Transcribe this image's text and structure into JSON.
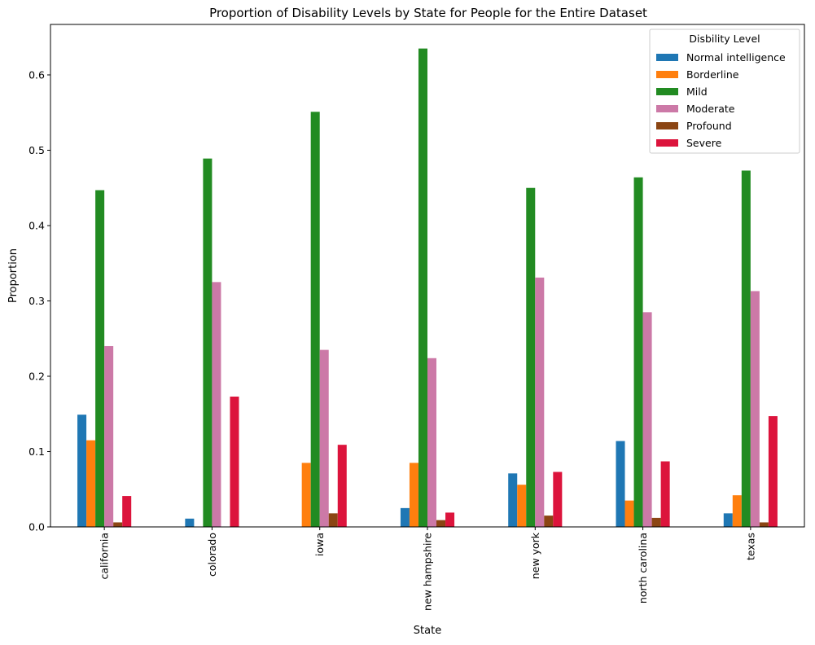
{
  "chart_data": {
    "type": "bar",
    "title": "Proportion of Disability Levels by State for People for the Entire Dataset",
    "xlabel": "State",
    "ylabel": "Proportion",
    "ylim": [
      0,
      0.667
    ],
    "yticks": [
      "0.0",
      "0.1",
      "0.2",
      "0.3",
      "0.4",
      "0.5",
      "0.6"
    ],
    "grid": false,
    "legend_title": "Disbility Level",
    "legend_position": "top-right",
    "categories": [
      "california",
      "colorado",
      "iowa",
      "new hampshire",
      "new york",
      "north carolina",
      "texas"
    ],
    "series": [
      {
        "name": "Normal intelligence",
        "color": "#1f77b4",
        "values": [
          0.149,
          0.011,
          0.0,
          0.025,
          0.071,
          0.114,
          0.018
        ]
      },
      {
        "name": "Borderline",
        "color": "#ff7f0e",
        "values": [
          0.115,
          0.0,
          0.085,
          0.085,
          0.056,
          0.035,
          0.042
        ]
      },
      {
        "name": "Mild",
        "color": "#228b22",
        "values": [
          0.447,
          0.489,
          0.551,
          0.635,
          0.45,
          0.464,
          0.473
        ]
      },
      {
        "name": "Moderate",
        "color": "#cc79a7",
        "values": [
          0.24,
          0.325,
          0.235,
          0.224,
          0.331,
          0.285,
          0.313
        ]
      },
      {
        "name": "Profound",
        "color": "#8b4513",
        "values": [
          0.006,
          0.0,
          0.018,
          0.009,
          0.015,
          0.012,
          0.006
        ]
      },
      {
        "name": "Severe",
        "color": "#dc143c",
        "values": [
          0.041,
          0.173,
          0.109,
          0.019,
          0.073,
          0.087,
          0.147
        ]
      }
    ]
  }
}
